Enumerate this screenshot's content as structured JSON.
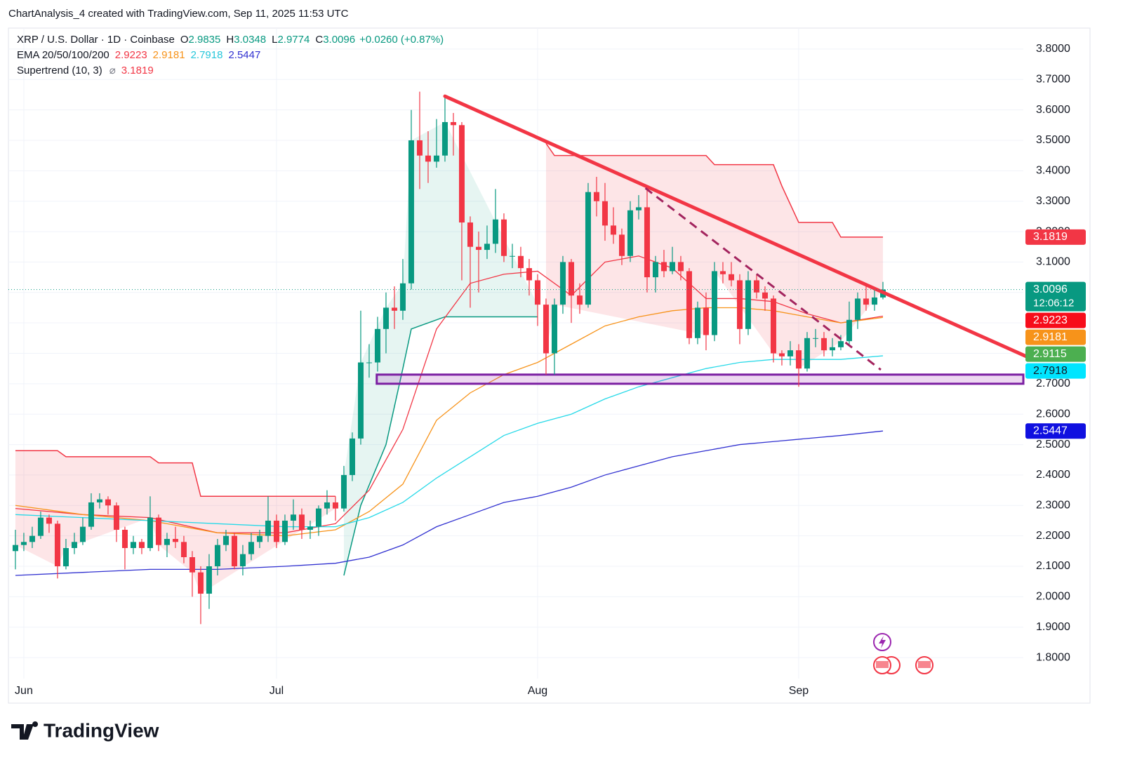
{
  "chart_data": {
    "type": "candlestick",
    "attribution": "ChartAnalysis_4 created with TradingView.com, Sep 11, 2025 11:53 UTC",
    "symbol": "XRP / U.S. Dollar · 1D · Coinbase",
    "ohlc_labels": [
      "O",
      "H",
      "L",
      "C"
    ],
    "change": "+0.0260 (+0.87%)",
    "up_color": "#089981",
    "down_color": "#f23645",
    "xlim": [
      -0.83,
      119.67
    ],
    "xticks": [
      {
        "value": 1,
        "label": "Jun"
      },
      {
        "value": 31,
        "label": "Jul"
      },
      {
        "value": 62,
        "label": "Aug"
      },
      {
        "value": 93,
        "label": "Sep"
      }
    ],
    "ylim": [
      1.731,
      3.869
    ],
    "yticks": [
      {
        "value": 1.8,
        "label": "1.8000"
      },
      {
        "value": 1.9,
        "label": "1.9000"
      },
      {
        "value": 2.0,
        "label": "2.0000"
      },
      {
        "value": 2.1,
        "label": "2.1000"
      },
      {
        "value": 2.2,
        "label": "2.2000"
      },
      {
        "value": 2.3,
        "label": "2.3000"
      },
      {
        "value": 2.4,
        "label": "2.4000"
      },
      {
        "value": 2.5,
        "label": "2.5000"
      },
      {
        "value": 2.6,
        "label": "2.6000"
      },
      {
        "value": 2.7,
        "label": "2.7000"
      },
      {
        "value": 2.8,
        "label": "2.8000"
      },
      {
        "value": 2.9,
        "label": "2.9000"
      },
      {
        "value": 3.0,
        "label": "3.0000"
      },
      {
        "value": 3.1,
        "label": "3.1000"
      },
      {
        "value": 3.2,
        "label": "3.2000"
      },
      {
        "value": 3.3,
        "label": "3.3000"
      },
      {
        "value": 3.4,
        "label": "3.4000"
      },
      {
        "value": 3.5,
        "label": "3.5000"
      },
      {
        "value": 3.6,
        "label": "3.6000"
      },
      {
        "value": 3.7,
        "label": "3.7000"
      },
      {
        "value": 3.8,
        "label": "3.8000"
      }
    ],
    "grid": true,
    "open": [
      2.15,
      2.17,
      2.18,
      2.2,
      2.26,
      2.24,
      2.1,
      2.16,
      2.18,
      2.23,
      2.31,
      2.32,
      2.3,
      2.22,
      2.16,
      2.18,
      2.16,
      2.26,
      2.17,
      2.19,
      2.18,
      2.13,
      2.08,
      2.01,
      2.1,
      2.17,
      2.2,
      2.1,
      2.14,
      2.18,
      2.2,
      2.25,
      2.18,
      2.25,
      2.27,
      2.22,
      2.23,
      2.29,
      2.31,
      2.29,
      2.4,
      2.52,
      2.77,
      2.77,
      2.88,
      2.95,
      2.94,
      3.03,
      3.5,
      3.45,
      3.43,
      3.45,
      3.56,
      3.55,
      3.23,
      3.15,
      3.14,
      3.16,
      3.24,
      3.12,
      3.12,
      3.08,
      3.04,
      2.96,
      2.8,
      2.96,
      3.1,
      2.99,
      2.96,
      3.33,
      3.3,
      3.22,
      3.19,
      3.12,
      3.27,
      3.28,
      3.05,
      3.1,
      3.07,
      3.1,
      3.07,
      2.85,
      2.95,
      2.86,
      3.07,
      3.06,
      3.04,
      2.88,
      3.04,
      3.0,
      2.98,
      2.8,
      2.79,
      2.81,
      2.75,
      2.85,
      2.85,
      2.81,
      2.82,
      2.84,
      2.91,
      2.98,
      2.96,
      2.9835
    ],
    "high": [
      2.22,
      2.21,
      2.23,
      2.28,
      2.27,
      2.25,
      2.19,
      2.21,
      2.26,
      2.34,
      2.34,
      2.33,
      2.31,
      2.23,
      2.2,
      2.19,
      2.33,
      2.27,
      2.21,
      2.23,
      2.2,
      2.15,
      2.1,
      2.14,
      2.19,
      2.22,
      2.21,
      2.17,
      2.21,
      2.22,
      2.33,
      2.27,
      2.27,
      2.32,
      2.29,
      2.25,
      2.3,
      2.35,
      2.33,
      2.43,
      2.54,
      2.94,
      2.83,
      2.92,
      3.0,
      3.02,
      3.11,
      3.6,
      3.66,
      3.53,
      3.57,
      3.65,
      3.59,
      3.56,
      3.25,
      3.2,
      3.22,
      3.34,
      3.26,
      3.16,
      3.15,
      3.11,
      3.06,
      2.98,
      2.98,
      3.12,
      3.11,
      3.03,
      3.36,
      3.38,
      3.36,
      3.28,
      3.21,
      3.3,
      3.32,
      3.35,
      3.12,
      3.14,
      3.15,
      3.12,
      3.08,
      2.97,
      3.0,
      3.1,
      3.1,
      3.1,
      3.06,
      3.07,
      3.06,
      3.02,
      2.99,
      2.81,
      2.84,
      2.83,
      2.87,
      2.88,
      2.87,
      2.85,
      2.86,
      2.97,
      3.0,
      3.03,
      3.01,
      3.0348
    ],
    "low": [
      2.09,
      2.15,
      2.16,
      2.19,
      2.21,
      2.06,
      2.09,
      2.14,
      2.17,
      2.22,
      2.29,
      2.27,
      2.18,
      2.09,
      2.14,
      2.14,
      2.15,
      2.15,
      2.13,
      2.16,
      2.11,
      2.0,
      1.91,
      1.96,
      2.07,
      2.15,
      2.09,
      2.07,
      2.12,
      2.16,
      2.18,
      2.16,
      2.17,
      2.22,
      2.19,
      2.19,
      2.2,
      2.27,
      2.25,
      2.28,
      2.38,
      2.5,
      2.72,
      2.74,
      2.8,
      2.88,
      2.91,
      3.01,
      3.34,
      3.36,
      3.41,
      3.43,
      3.45,
      3.04,
      2.95,
      3.0,
      3.11,
      3.13,
      3.1,
      3.08,
      3.05,
      2.99,
      2.89,
      2.73,
      2.73,
      2.93,
      2.9,
      2.93,
      2.95,
      3.25,
      3.17,
      3.16,
      3.09,
      3.1,
      3.24,
      3.0,
      3.0,
      3.05,
      3.06,
      3.04,
      2.83,
      2.83,
      2.81,
      2.84,
      3.03,
      3.02,
      2.83,
      2.86,
      2.98,
      2.94,
      2.77,
      2.76,
      2.76,
      2.69,
      2.74,
      2.82,
      2.79,
      2.79,
      2.81,
      2.83,
      2.88,
      2.94,
      2.94,
      2.9774
    ],
    "close": [
      2.17,
      2.18,
      2.2,
      2.26,
      2.24,
      2.1,
      2.16,
      2.18,
      2.23,
      2.31,
      2.32,
      2.3,
      2.22,
      2.16,
      2.18,
      2.16,
      2.26,
      2.17,
      2.19,
      2.18,
      2.13,
      2.08,
      2.01,
      2.1,
      2.17,
      2.2,
      2.1,
      2.14,
      2.18,
      2.2,
      2.25,
      2.18,
      2.25,
      2.27,
      2.22,
      2.23,
      2.29,
      2.31,
      2.29,
      2.4,
      2.52,
      2.77,
      2.77,
      2.88,
      2.95,
      2.94,
      3.03,
      3.5,
      3.45,
      3.43,
      3.45,
      3.56,
      3.55,
      3.23,
      3.15,
      3.14,
      3.16,
      3.24,
      3.12,
      3.12,
      3.08,
      3.04,
      2.96,
      2.8,
      2.96,
      3.1,
      2.99,
      2.96,
      3.33,
      3.3,
      3.22,
      3.19,
      3.12,
      3.27,
      3.28,
      3.05,
      3.1,
      3.07,
      3.1,
      3.07,
      2.85,
      2.95,
      2.86,
      3.07,
      3.06,
      3.04,
      2.88,
      3.04,
      3.0,
      2.98,
      2.8,
      2.79,
      2.81,
      2.75,
      2.85,
      2.85,
      2.81,
      2.82,
      2.84,
      2.91,
      2.98,
      2.96,
      2.9835,
      3.0096
    ],
    "countdown": "12:06:12",
    "ema": {
      "label": "EMA 20/50/100/200",
      "x": [
        0,
        8,
        16,
        24,
        32,
        38,
        42,
        46,
        50,
        54,
        58,
        62,
        66,
        70,
        74,
        78,
        82,
        86,
        90,
        94,
        98,
        103
      ],
      "series": [
        {
          "color": "#f23645",
          "values": [
            2.29,
            2.27,
            2.26,
            2.21,
            2.21,
            2.24,
            2.35,
            2.55,
            2.88,
            3.03,
            3.06,
            3.07,
            2.99,
            3.1,
            3.12,
            3.08,
            2.98,
            2.98,
            2.97,
            2.93,
            2.9,
            2.9223
          ]
        },
        {
          "color": "#f7931a",
          "values": [
            2.3,
            2.27,
            2.25,
            2.21,
            2.2,
            2.22,
            2.28,
            2.37,
            2.58,
            2.67,
            2.73,
            2.77,
            2.83,
            2.89,
            2.92,
            2.94,
            2.95,
            2.95,
            2.94,
            2.92,
            2.9,
            2.9181
          ]
        },
        {
          "color": "#26d9e8",
          "values": [
            2.27,
            2.26,
            2.25,
            2.24,
            2.23,
            2.23,
            2.26,
            2.31,
            2.39,
            2.46,
            2.53,
            2.57,
            2.6,
            2.65,
            2.69,
            2.72,
            2.75,
            2.77,
            2.78,
            2.78,
            2.78,
            2.7918
          ]
        },
        {
          "color": "#3030d0",
          "values": [
            2.07,
            2.08,
            2.09,
            2.09,
            2.1,
            2.11,
            2.13,
            2.17,
            2.23,
            2.27,
            2.31,
            2.33,
            2.36,
            2.4,
            2.43,
            2.46,
            2.48,
            2.5,
            2.51,
            2.52,
            2.53,
            2.5447
          ]
        }
      ]
    },
    "supertrend": {
      "label": "Supertrend (10, 3)",
      "symbol": "⌀",
      "segments": [
        {
          "direction": "down",
          "x": [
            0,
            5,
            6,
            16,
            17,
            21,
            22,
            38
          ],
          "values": [
            2.48,
            2.48,
            2.46,
            2.46,
            2.44,
            2.44,
            2.33,
            2.33
          ]
        },
        {
          "direction": "up",
          "x": [
            39,
            41,
            44,
            46,
            47,
            51,
            62
          ],
          "values": [
            2.07,
            2.3,
            2.5,
            2.75,
            2.88,
            2.92,
            2.92
          ]
        },
        {
          "direction": "down",
          "x": [
            63,
            64,
            82,
            83,
            90,
            91,
            92,
            93,
            97,
            98,
            103
          ],
          "values": [
            3.49,
            3.45,
            3.45,
            3.42,
            3.42,
            3.35,
            3.29,
            3.23,
            3.23,
            3.1819,
            3.1819
          ]
        }
      ]
    },
    "extra_badge": {
      "value": 2.9115,
      "color": "#4caf50"
    },
    "trendline": {
      "color": "#f23645",
      "x": [
        51,
        120
      ],
      "values": [
        3.645,
        2.79
      ]
    },
    "dashed_trendline": {
      "color": "#a3245e",
      "x": [
        74.8,
        102.75
      ],
      "values": [
        3.343,
        2.746
      ]
    },
    "support_zone": {
      "x": 42.9,
      "top": 2.73,
      "bottom": 2.7,
      "color": "#7b1fa2"
    },
    "footer_logo": "TradingView"
  }
}
